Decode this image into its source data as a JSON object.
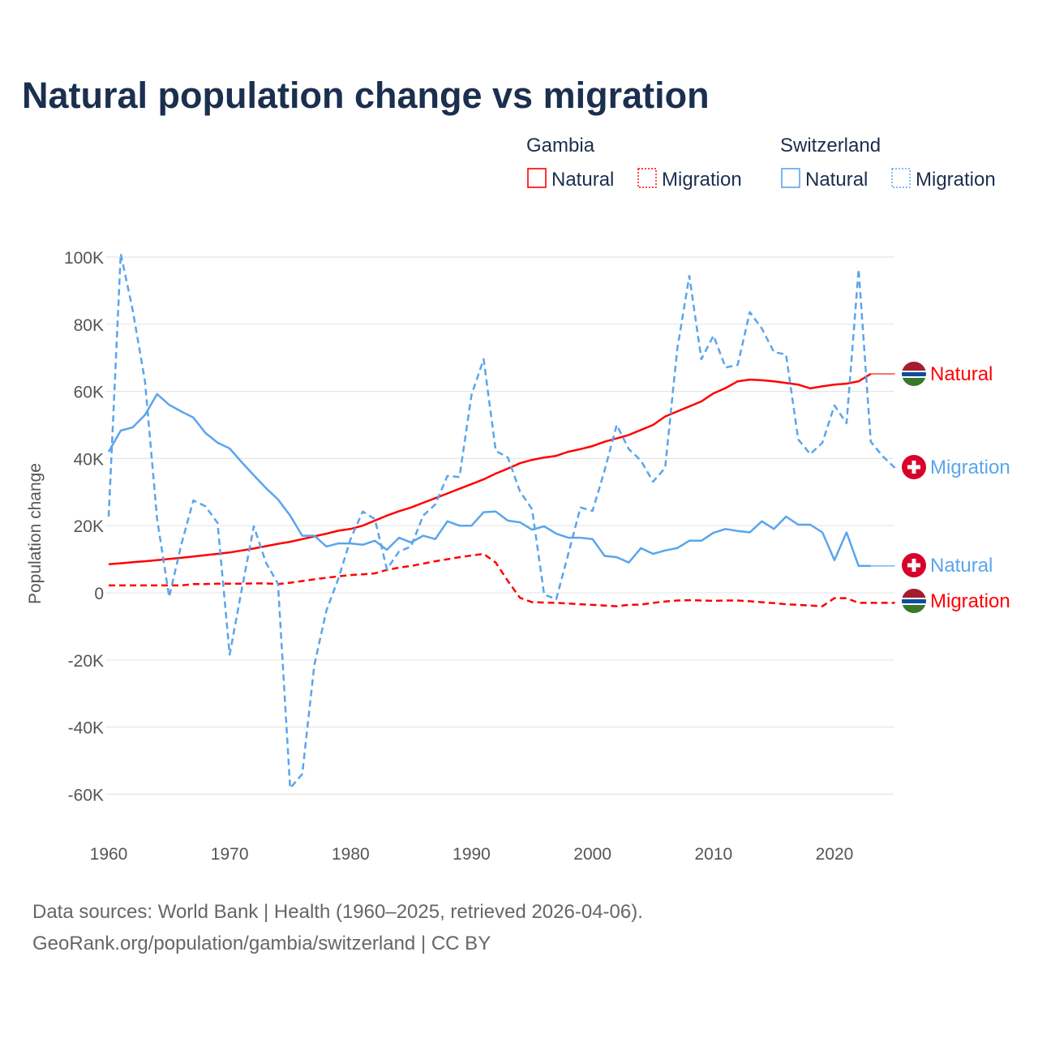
{
  "chart_data": {
    "type": "line",
    "title": "Natural population change vs migration",
    "ylabel": "Population change",
    "xlabel": "",
    "xlim": [
      1960,
      2025
    ],
    "ylim": [
      -70000,
      100000
    ],
    "x_ticks": [
      "1960",
      "1970",
      "1980",
      "1990",
      "2000",
      "2010",
      "2020"
    ],
    "x_tick_values": [
      1960,
      1970,
      1980,
      1990,
      2000,
      2010,
      2020
    ],
    "y_ticks": [
      "100K",
      "80K",
      "60K",
      "40K",
      "20K",
      "0",
      "-20K",
      "-40K",
      "-60K"
    ],
    "y_tick_values": [
      100000,
      80000,
      60000,
      40000,
      20000,
      0,
      -20000,
      -40000,
      -60000
    ],
    "grid": true,
    "legend": {
      "placement": "top-right",
      "groups": [
        {
          "name": "Gambia",
          "items": [
            "Natural",
            "Migration"
          ]
        },
        {
          "name": "Switzerland",
          "items": [
            "Natural",
            "Migration"
          ]
        }
      ]
    },
    "series": [
      {
        "name": "Gambia Natural",
        "country": "Gambia",
        "kind": "Natural",
        "color": "#ff0000",
        "dashed": false,
        "end_label": "Natural",
        "start_year": 1960,
        "values": [
          8500,
          8800,
          9100,
          9400,
          9700,
          10100,
          10400,
          10800,
          11200,
          11600,
          12000,
          12600,
          13200,
          13900,
          14600,
          15200,
          16000,
          16800,
          17600,
          18500,
          19000,
          20000,
          21500,
          23000,
          24300,
          25400,
          26800,
          28200,
          29600,
          31000,
          32400,
          33800,
          35500,
          37000,
          38600,
          39600,
          40300,
          40800,
          42000,
          42800,
          43700,
          45000,
          46000,
          47000,
          48500,
          50000,
          52500,
          54000,
          55500,
          57000,
          59400,
          61000,
          63000,
          63500,
          63300,
          63000,
          62500,
          62000,
          60900,
          61500,
          62000,
          62300,
          63000,
          65200
        ]
      },
      {
        "name": "Gambia Migration",
        "country": "Gambia",
        "kind": "Migration",
        "color": "#ff0000",
        "dashed": true,
        "end_label": "Migration",
        "start_year": 1960,
        "values": [
          2200,
          2200,
          2200,
          2200,
          2200,
          2200,
          2200,
          2600,
          2600,
          2700,
          2700,
          2700,
          2800,
          2800,
          2600,
          3000,
          3500,
          4000,
          4500,
          4900,
          5300,
          5500,
          5800,
          6800,
          7500,
          8000,
          8700,
          9400,
          10000,
          10600,
          11100,
          11600,
          9000,
          3500,
          -1500,
          -2800,
          -2900,
          -3000,
          -3200,
          -3400,
          -3600,
          -3800,
          -4000,
          -3600,
          -3500,
          -3000,
          -2600,
          -2300,
          -2200,
          -2300,
          -2400,
          -2300,
          -2300,
          -2500,
          -2800,
          -3100,
          -3400,
          -3600,
          -3800,
          -4000,
          -1600,
          -1600,
          -3000,
          -3000,
          -3000,
          -3000
        ]
      },
      {
        "name": "Switzerland Natural",
        "country": "Switzerland",
        "kind": "Natural",
        "color": "#5aa5ec",
        "dashed": false,
        "end_label": "Natural",
        "start_year": 1960,
        "values": [
          42000,
          48300,
          49300,
          53000,
          59200,
          56000,
          54000,
          52200,
          47600,
          44700,
          43000,
          38900,
          35000,
          31200,
          27800,
          23000,
          17000,
          17000,
          13800,
          14700,
          14700,
          14300,
          15500,
          12800,
          16400,
          15000,
          17000,
          16000,
          21300,
          20000,
          20000,
          24000,
          24200,
          21500,
          21000,
          18800,
          19800,
          17600,
          16400,
          16400,
          16000,
          11000,
          10600,
          9000,
          13300,
          11600,
          12600,
          13300,
          15500,
          15500,
          17900,
          19000,
          18400,
          18000,
          21300,
          19000,
          22700,
          20300,
          20300,
          18000,
          9700,
          18000,
          8000,
          8000
        ]
      },
      {
        "name": "Switzerland Migration",
        "country": "Switzerland",
        "kind": "Migration",
        "color": "#5aa5ec",
        "dashed": true,
        "end_label": "Migration",
        "start_year": 1960,
        "values": [
          22700,
          101000,
          84000,
          63000,
          22000,
          -1200,
          14300,
          27500,
          25800,
          20800,
          -18400,
          1000,
          19800,
          9000,
          2700,
          -58200,
          -54000,
          -21500,
          -5300,
          4300,
          16000,
          24200,
          22000,
          7000,
          12300,
          13800,
          23000,
          26300,
          34800,
          34500,
          59000,
          69600,
          42300,
          40300,
          30200,
          24900,
          -500,
          -1900,
          11600,
          25400,
          24400,
          36500,
          50000,
          42800,
          39400,
          33100,
          37200,
          72500,
          94400,
          69600,
          76600,
          67100,
          67900,
          83600,
          78700,
          71700,
          71000,
          45700,
          41300,
          44700,
          55800,
          50500,
          96400,
          45000,
          40600,
          37200
        ]
      }
    ]
  },
  "footer": {
    "line1": "Data sources: World Bank | Health (1960–2025, retrieved 2026-04-06).",
    "line2": "GeoRank.org/population/gambia/switzerland | CC BY"
  }
}
